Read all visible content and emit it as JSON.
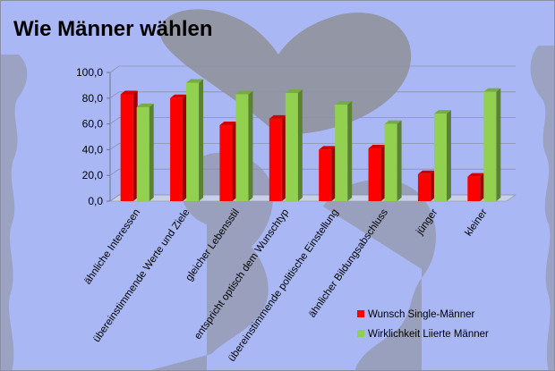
{
  "chart_data": {
    "type": "bar",
    "title": "Wie Männer wählen",
    "categories": [
      "ähnliche Interessen",
      "übereinstimmende Werte und Ziele",
      "gleicher Lebensstil",
      "entspricht optisch dem Wunschtyp",
      "übereinstimmende politische Einstellung",
      "ähnlicher Bildungsabschluss",
      "jünger",
      "kleiner"
    ],
    "series": [
      {
        "name": "Wunsch Single-Männer",
        "color": "#ff0000",
        "values": [
          83,
          80,
          59,
          64,
          40,
          41,
          21,
          19
        ]
      },
      {
        "name": "Wirklichkeit Liierte Männer",
        "color": "#92d050",
        "values": [
          73,
          92,
          83,
          84,
          75,
          60,
          68,
          85
        ]
      }
    ],
    "yticks": [
      "0,0",
      "20,0",
      "40,0",
      "60,0",
      "80,0",
      "100,0"
    ],
    "ylim": [
      0,
      100
    ],
    "grid": true,
    "legend_position": "bottom-right"
  }
}
